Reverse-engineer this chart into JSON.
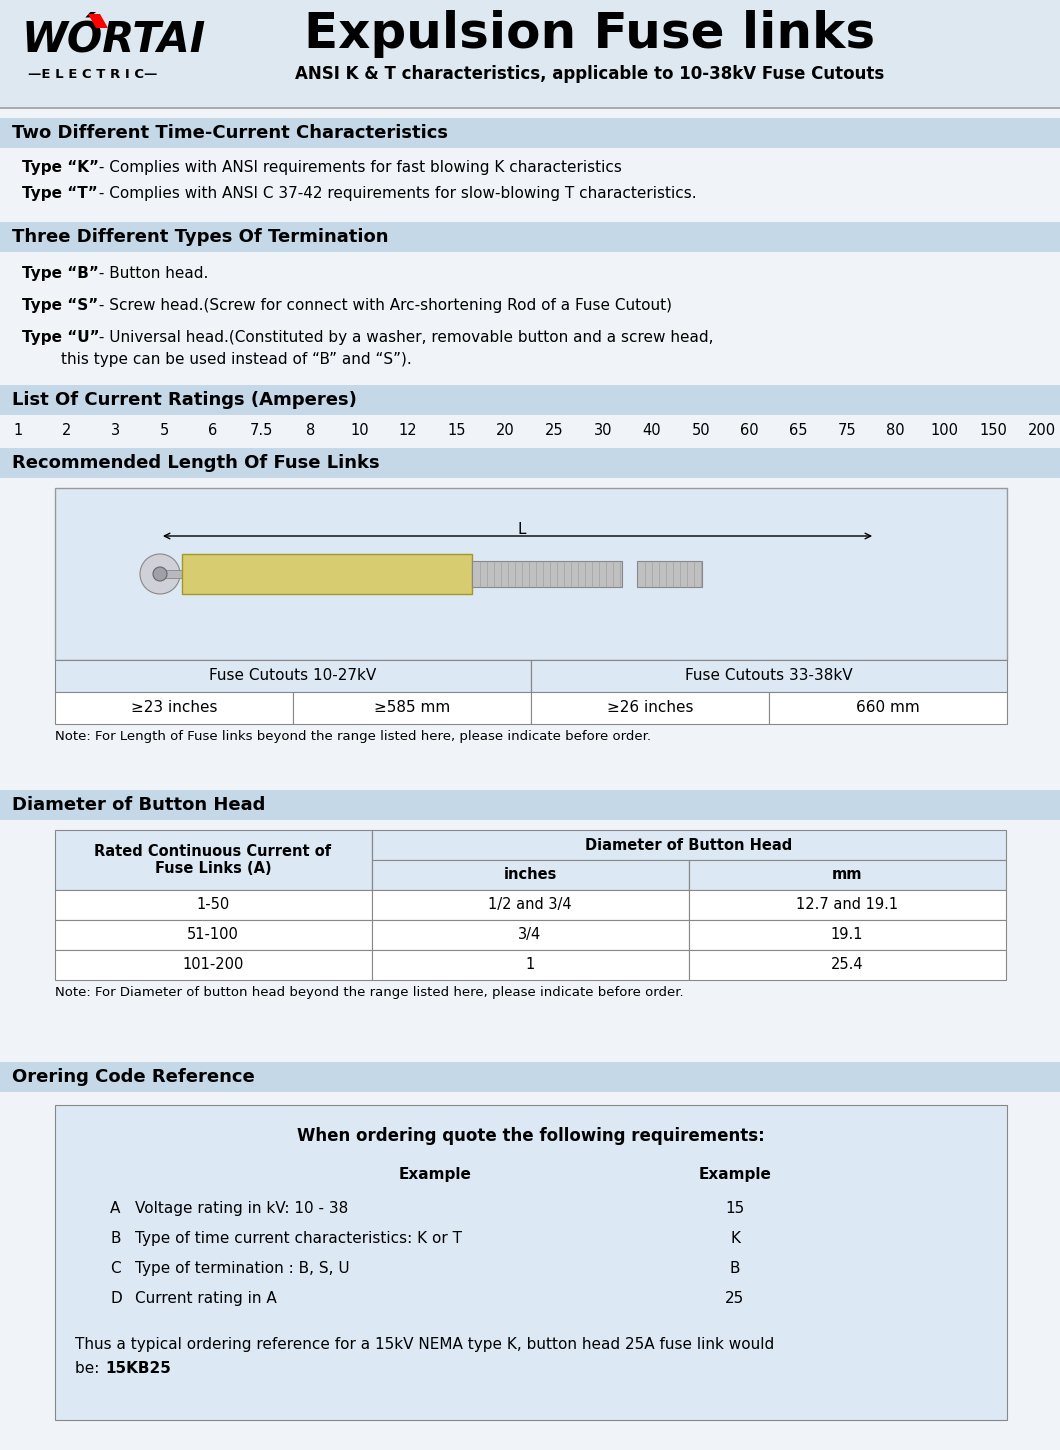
{
  "title": "Expulsion Fuse links",
  "subtitle": "ANSI K & T characteristics, applicable to 10-38kV Fuse Cutouts",
  "bg_color": "#f0f4f8",
  "header_bg": "#dde8f0",
  "section_bg": "#c5d8e8",
  "white": "#ffffff",
  "black": "#000000",
  "section_headers": [
    "Two Different Time-Current Characteristics",
    "Three Different Types Of Termination",
    "List Of Current Ratings (Amperes)",
    "Recommended Length Of Fuse Links",
    "Diameter of Button Head",
    "Orering Code Reference"
  ],
  "type_k_text1": "Type “K”",
  "type_k_text2": " - Complies with ANSI requirements for fast blowing K characteristics",
  "type_t_text1": "Type “T”",
  "type_t_text2": " - Complies with ANSI C 37-42 requirements for slow-blowing T characteristics.",
  "type_b_text1": "Type “B”",
  "type_b_text2": " - Button head.",
  "type_s_text1": "Type “S”",
  "type_s_text2": " - Screw head.(Screw for connect with Arc-shortening Rod of a Fuse Cutout)",
  "type_u_text1a": "Type “U”",
  "type_u_text1b": " - Universal head.(Constituted by a washer, removable button and a screw head,",
  "type_u_text2": "        this type can be used instead of “B” and “S”).",
  "current_ratings": [
    "1",
    "2",
    "3",
    "5",
    "6",
    "7.5",
    "8",
    "10",
    "12",
    "15",
    "20",
    "25",
    "30",
    "40",
    "50",
    "60",
    "65",
    "75",
    "80",
    "100",
    "150",
    "200"
  ],
  "fuse_length_note": "Note: For Length of Fuse links beyond the range listed here, please indicate before order.",
  "fuse_table_col1": "Fuse Cutouts 10-27kV",
  "fuse_table_col2": "Fuse Cutouts 33-38kV",
  "fuse_table_row": [
    "≥23 inches",
    "≥585 mm",
    "≥26 inches",
    "660 mm"
  ],
  "button_head_rows": [
    [
      "1-50",
      "1/2 and 3/4",
      "12.7 and 19.1"
    ],
    [
      "51-100",
      "3/4",
      "19.1"
    ],
    [
      "101-200",
      "1",
      "25.4"
    ]
  ],
  "button_head_note": "Note: For Diameter of button head beyond the range listed here, please indicate before order.",
  "ordering_title": "When ordering quote the following requirements:",
  "ordering_example_col": "Example",
  "ordering_rows": [
    [
      "A",
      "Voltage rating in kV: 10 - 38",
      "15"
    ],
    [
      "B",
      "Type of time current characteristics: K or T",
      "K"
    ],
    [
      "C",
      "Type of termination : B, S, U",
      "B"
    ],
    [
      "D",
      "Current rating in A",
      "25"
    ]
  ],
  "ordering_note_line1": "Thus a typical ordering reference for a 15kV NEMA type K, button head 25A fuse link would",
  "ordering_note_line2": "be: ",
  "ordering_note_bold": "15KB25"
}
